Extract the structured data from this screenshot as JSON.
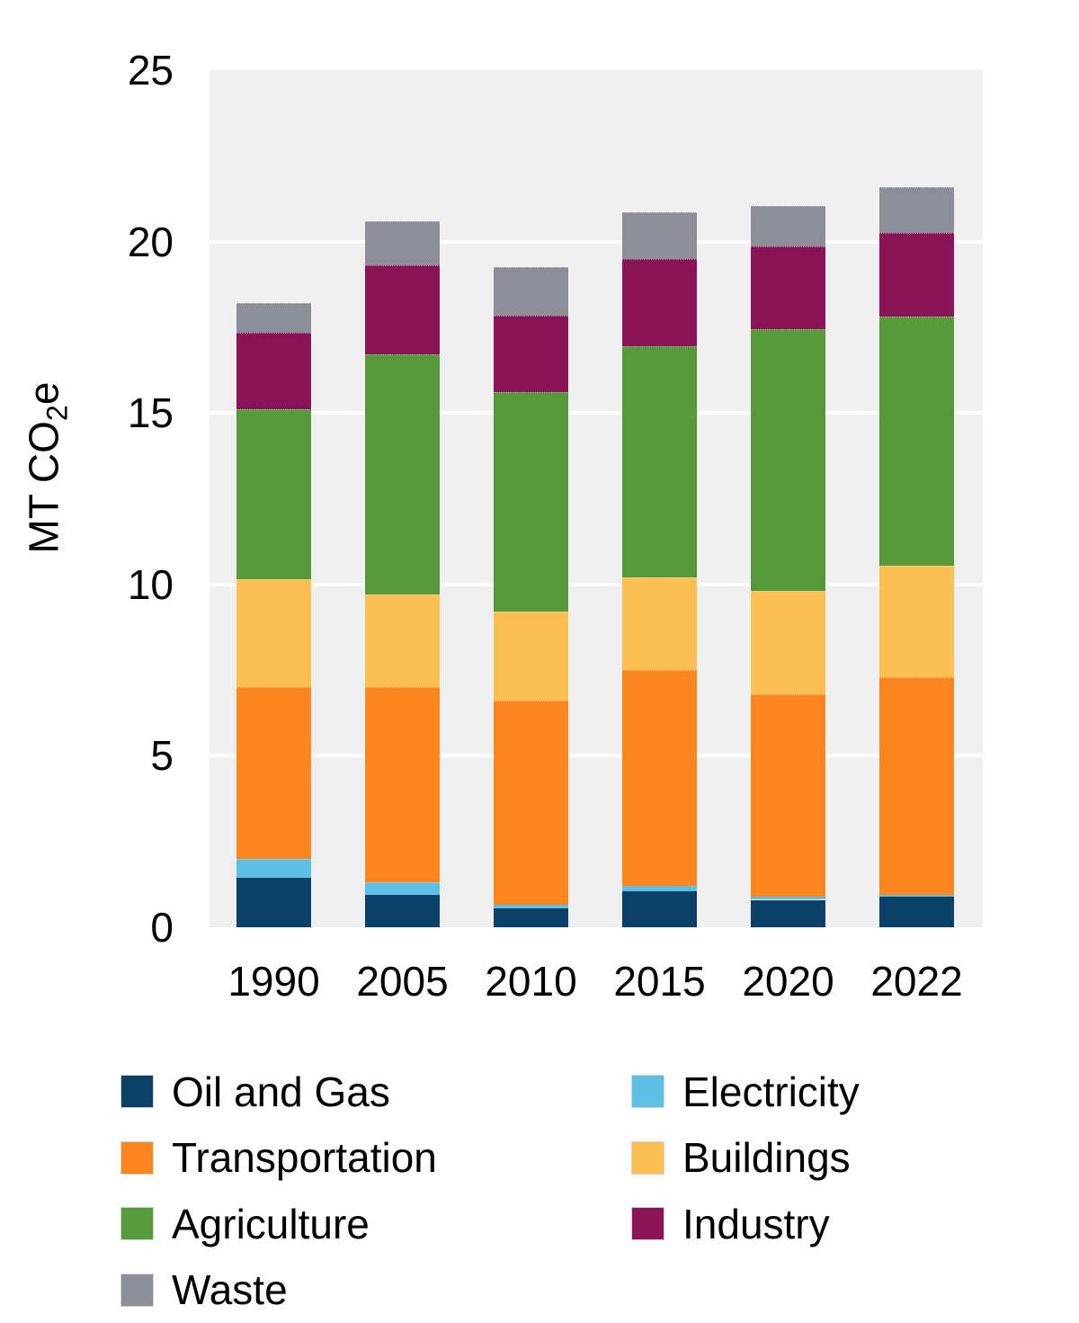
{
  "page": {
    "background": "#ffffff"
  },
  "chart": {
    "ylabel_parts": {
      "prefix": "MT CO",
      "sub": "2",
      "suffix": "e"
    }
  },
  "chart_data": {
    "type": "bar",
    "stacked": true,
    "title": "",
    "xlabel": "",
    "ylabel": "MT CO2e",
    "ylim": [
      0,
      25
    ],
    "yticks": [
      0,
      5,
      10,
      15,
      20,
      25
    ],
    "grid": true,
    "gridline_color": "#ffffff",
    "panel_background": "#f0efef",
    "text_color": "#000000",
    "legend_position": "bottom",
    "legend_columns": 2,
    "categories": [
      "1990",
      "2005",
      "2010",
      "2015",
      "2020",
      "2022"
    ],
    "series": [
      {
        "name": "Oil and Gas",
        "color": "#0b4168",
        "values": [
          1.45,
          0.95,
          0.55,
          1.05,
          0.8,
          0.9
        ]
      },
      {
        "name": "Electricity",
        "color": "#5fc0e5",
        "values": [
          0.55,
          0.35,
          0.1,
          0.15,
          0.1,
          0.05
        ]
      },
      {
        "name": "Transportation",
        "color": "#fb851e",
        "values": [
          5.0,
          5.7,
          5.95,
          6.3,
          5.9,
          6.35
        ]
      },
      {
        "name": "Buildings",
        "color": "#fdbe53",
        "values": [
          3.15,
          2.7,
          2.6,
          2.7,
          3.0,
          3.25
        ]
      },
      {
        "name": "Agriculture",
        "color": "#56993a",
        "values": [
          4.95,
          7.0,
          6.4,
          6.75,
          7.65,
          7.25
        ]
      },
      {
        "name": "Industry",
        "color": "#8a1457",
        "values": [
          2.25,
          2.6,
          2.25,
          2.55,
          2.4,
          2.45
        ]
      },
      {
        "name": "Waste",
        "color": "#8e8e99",
        "values": [
          0.85,
          1.3,
          1.4,
          1.35,
          1.2,
          1.35
        ]
      }
    ]
  }
}
